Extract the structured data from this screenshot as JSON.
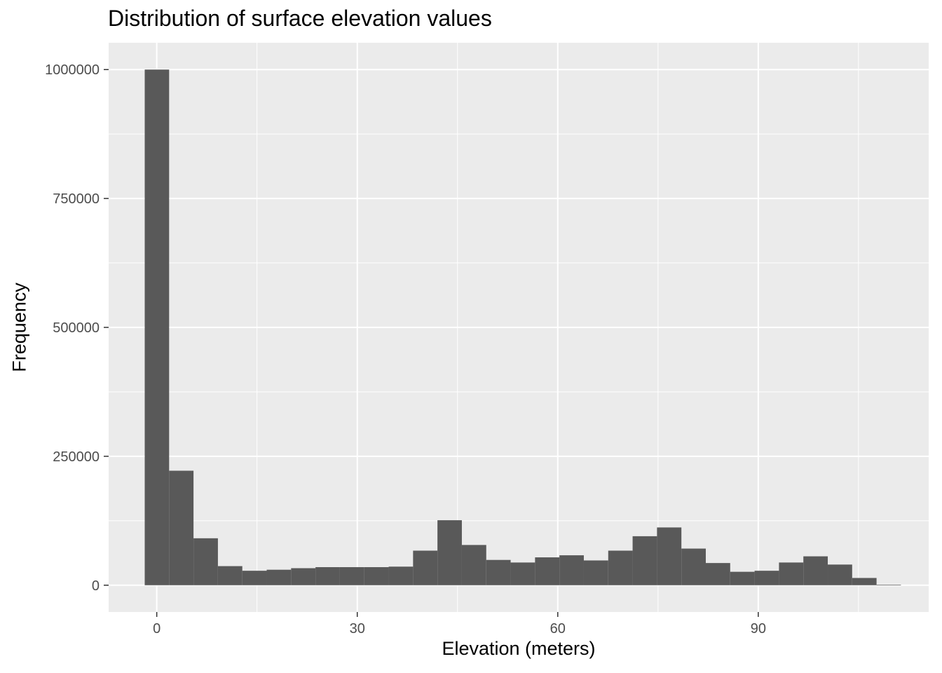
{
  "chart_data": {
    "type": "bar",
    "title": "Distribution of surface elevation values",
    "xlabel": "Elevation (meters)",
    "ylabel": "Frequency",
    "bin_width": 3.65,
    "bins": [
      {
        "x0": -1.8,
        "x1": 1.85,
        "count": 1000000
      },
      {
        "x0": 1.85,
        "x1": 5.5,
        "count": 222000
      },
      {
        "x0": 5.5,
        "x1": 9.15,
        "count": 91000
      },
      {
        "x0": 9.15,
        "x1": 12.8,
        "count": 37000
      },
      {
        "x0": 12.8,
        "x1": 16.45,
        "count": 28000
      },
      {
        "x0": 16.45,
        "x1": 20.1,
        "count": 30000
      },
      {
        "x0": 20.1,
        "x1": 23.75,
        "count": 33000
      },
      {
        "x0": 23.75,
        "x1": 27.4,
        "count": 35000
      },
      {
        "x0": 27.4,
        "x1": 31.05,
        "count": 35000
      },
      {
        "x0": 31.05,
        "x1": 34.7,
        "count": 35000
      },
      {
        "x0": 34.7,
        "x1": 38.35,
        "count": 36000
      },
      {
        "x0": 38.35,
        "x1": 42.0,
        "count": 67000
      },
      {
        "x0": 42.0,
        "x1": 45.65,
        "count": 126000
      },
      {
        "x0": 45.65,
        "x1": 49.3,
        "count": 78000
      },
      {
        "x0": 49.3,
        "x1": 52.95,
        "count": 49000
      },
      {
        "x0": 52.95,
        "x1": 56.6,
        "count": 44000
      },
      {
        "x0": 56.6,
        "x1": 60.25,
        "count": 54000
      },
      {
        "x0": 60.25,
        "x1": 63.9,
        "count": 58000
      },
      {
        "x0": 63.9,
        "x1": 67.55,
        "count": 48000
      },
      {
        "x0": 67.55,
        "x1": 71.2,
        "count": 67000
      },
      {
        "x0": 71.2,
        "x1": 74.85,
        "count": 95000
      },
      {
        "x0": 74.85,
        "x1": 78.5,
        "count": 112000
      },
      {
        "x0": 78.5,
        "x1": 82.15,
        "count": 71000
      },
      {
        "x0": 82.15,
        "x1": 85.8,
        "count": 43000
      },
      {
        "x0": 85.8,
        "x1": 89.45,
        "count": 26000
      },
      {
        "x0": 89.45,
        "x1": 93.1,
        "count": 28000
      },
      {
        "x0": 93.1,
        "x1": 96.75,
        "count": 44000
      },
      {
        "x0": 96.75,
        "x1": 100.4,
        "count": 56000
      },
      {
        "x0": 100.4,
        "x1": 104.05,
        "count": 40000
      },
      {
        "x0": 104.05,
        "x1": 107.7,
        "count": 14000
      },
      {
        "x0": 107.7,
        "x1": 111.35,
        "count": 1000
      }
    ],
    "xlim": [
      -7.2,
      115.5
    ],
    "ylim": [
      -52000,
      1052000
    ],
    "x_ticks": [
      0,
      30,
      60,
      90
    ],
    "x_tick_labels": [
      "0",
      "30",
      "60",
      "90"
    ],
    "y_ticks": [
      0,
      250000,
      500000,
      750000,
      1000000
    ],
    "y_tick_labels": [
      "0",
      "250000",
      "500000",
      "750000",
      "1000000"
    ],
    "grid": true,
    "legend": "none",
    "colors": {
      "panel": "#ebebeb",
      "grid_major": "#ffffff",
      "bar": "#595959",
      "tick_text": "#4d4d4d",
      "tick_mark": "#333333"
    }
  }
}
